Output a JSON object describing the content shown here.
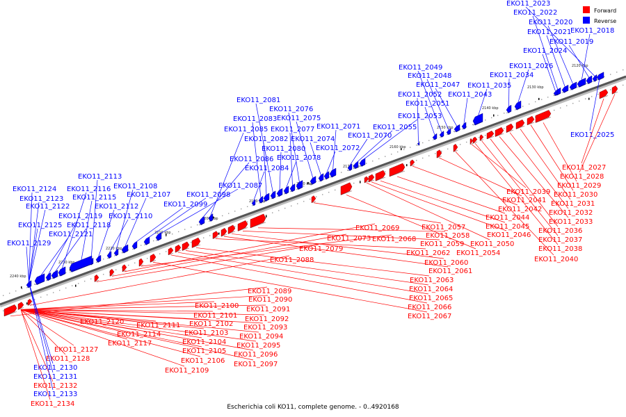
{
  "caption": "Escherichia coli KO11, complete genome. - 0..4920168",
  "legend": {
    "forward_label": "Forward",
    "reverse_label": "Reverse",
    "forward_color": "#ff0000",
    "reverse_color": "#0000ff"
  },
  "colors": {
    "forward": "#ff0000",
    "reverse": "#0000ff",
    "axis": "#555555"
  },
  "ticks": [
    "2120 kbp",
    "2130 kbp",
    "2140 kbp",
    "2150 kbp",
    "2160 kbp",
    "2170 kbp",
    "2180 kbp",
    "2190 kbp",
    "2200 kbp",
    "2210 kbp",
    "2220 kbp",
    "2230 kbp",
    "2240 kbp"
  ],
  "genes": [
    {
      "id": "EKO11_2018",
      "strand": "reverse"
    },
    {
      "id": "EKO11_2019",
      "strand": "reverse"
    },
    {
      "id": "EKO11_2020",
      "strand": "reverse"
    },
    {
      "id": "EKO11_2021",
      "strand": "reverse"
    },
    {
      "id": "EKO11_2022",
      "strand": "reverse"
    },
    {
      "id": "EKO11_2023",
      "strand": "reverse"
    },
    {
      "id": "EKO11_2024",
      "strand": "reverse"
    },
    {
      "id": "EKO11_2025",
      "strand": "reverse"
    },
    {
      "id": "EKO11_2026",
      "strand": "reverse"
    },
    {
      "id": "EKO11_2027",
      "strand": "forward"
    },
    {
      "id": "EKO11_2028",
      "strand": "forward"
    },
    {
      "id": "EKO11_2029",
      "strand": "forward"
    },
    {
      "id": "EKO11_2030",
      "strand": "forward"
    },
    {
      "id": "EKO11_2031",
      "strand": "forward"
    },
    {
      "id": "EKO11_2032",
      "strand": "forward"
    },
    {
      "id": "EKO11_2033",
      "strand": "forward"
    },
    {
      "id": "EKO11_2034",
      "strand": "reverse"
    },
    {
      "id": "EKO11_2035",
      "strand": "reverse"
    },
    {
      "id": "EKO11_2036",
      "strand": "forward"
    },
    {
      "id": "EKO11_2037",
      "strand": "forward"
    },
    {
      "id": "EKO11_2038",
      "strand": "forward"
    },
    {
      "id": "EKO11_2039",
      "strand": "forward"
    },
    {
      "id": "EKO11_2040",
      "strand": "forward"
    },
    {
      "id": "EKO11_2041",
      "strand": "forward"
    },
    {
      "id": "EKO11_2042",
      "strand": "forward"
    },
    {
      "id": "EKO11_2043",
      "strand": "reverse"
    },
    {
      "id": "EKO11_2044",
      "strand": "forward"
    },
    {
      "id": "EKO11_2045",
      "strand": "forward"
    },
    {
      "id": "EKO11_2046",
      "strand": "forward"
    },
    {
      "id": "EKO11_2047",
      "strand": "reverse"
    },
    {
      "id": "EKO11_2048",
      "strand": "reverse"
    },
    {
      "id": "EKO11_2049",
      "strand": "reverse"
    },
    {
      "id": "EKO11_2050",
      "strand": "forward"
    },
    {
      "id": "EKO11_2051",
      "strand": "reverse"
    },
    {
      "id": "EKO11_2052",
      "strand": "reverse"
    },
    {
      "id": "EKO11_2053",
      "strand": "reverse"
    },
    {
      "id": "EKO11_2054",
      "strand": "forward"
    },
    {
      "id": "EKO11_2055",
      "strand": "reverse"
    },
    {
      "id": "EKO11_2057",
      "strand": "forward"
    },
    {
      "id": "EKO11_2058",
      "strand": "forward"
    },
    {
      "id": "EKO11_2059",
      "strand": "forward"
    },
    {
      "id": "EKO11_2060",
      "strand": "forward"
    },
    {
      "id": "EKO11_2061",
      "strand": "forward"
    },
    {
      "id": "EKO11_2062",
      "strand": "forward"
    },
    {
      "id": "EKO11_2063",
      "strand": "forward"
    },
    {
      "id": "EKO11_2064",
      "strand": "forward"
    },
    {
      "id": "EKO11_2065",
      "strand": "forward"
    },
    {
      "id": "EKO11_2066",
      "strand": "forward"
    },
    {
      "id": "EKO11_2067",
      "strand": "forward"
    },
    {
      "id": "EKO11_2068",
      "strand": "forward"
    },
    {
      "id": "EKO11_2069",
      "strand": "forward"
    },
    {
      "id": "EKO11_2070",
      "strand": "reverse"
    },
    {
      "id": "EKO11_2071",
      "strand": "reverse"
    },
    {
      "id": "EKO11_2072",
      "strand": "reverse"
    },
    {
      "id": "EKO11_2073",
      "strand": "forward"
    },
    {
      "id": "EKO11_2074",
      "strand": "reverse"
    },
    {
      "id": "EKO11_2075",
      "strand": "reverse"
    },
    {
      "id": "EKO11_2076",
      "strand": "reverse"
    },
    {
      "id": "EKO11_2077",
      "strand": "reverse"
    },
    {
      "id": "EKO11_2078",
      "strand": "reverse"
    },
    {
      "id": "EKO11_2079",
      "strand": "forward"
    },
    {
      "id": "EKO11_2080",
      "strand": "reverse"
    },
    {
      "id": "EKO11_2081",
      "strand": "reverse"
    },
    {
      "id": "EKO11_2082",
      "strand": "reverse"
    },
    {
      "id": "EKO11_2083",
      "strand": "reverse"
    },
    {
      "id": "EKO11_2084",
      "strand": "reverse"
    },
    {
      "id": "EKO11_2085",
      "strand": "reverse"
    },
    {
      "id": "EKO11_2086",
      "strand": "reverse"
    },
    {
      "id": "EKO11_2087",
      "strand": "reverse"
    },
    {
      "id": "EKO11_2088",
      "strand": "forward"
    },
    {
      "id": "EKO11_2089",
      "strand": "forward"
    },
    {
      "id": "EKO11_2090",
      "strand": "forward"
    },
    {
      "id": "EKO11_2091",
      "strand": "forward"
    },
    {
      "id": "EKO11_2092",
      "strand": "forward"
    },
    {
      "id": "EKO11_2093",
      "strand": "forward"
    },
    {
      "id": "EKO11_2094",
      "strand": "forward"
    },
    {
      "id": "EKO11_2095",
      "strand": "forward"
    },
    {
      "id": "EKO11_2096",
      "strand": "forward"
    },
    {
      "id": "EKO11_2097",
      "strand": "forward"
    },
    {
      "id": "EKO11_2098",
      "strand": "reverse"
    },
    {
      "id": "EKO11_2099",
      "strand": "reverse"
    },
    {
      "id": "EKO11_2100",
      "strand": "forward"
    },
    {
      "id": "EKO11_2101",
      "strand": "forward"
    },
    {
      "id": "EKO11_2102",
      "strand": "forward"
    },
    {
      "id": "EKO11_2103",
      "strand": "forward"
    },
    {
      "id": "EKO11_2104",
      "strand": "forward"
    },
    {
      "id": "EKO11_2105",
      "strand": "forward"
    },
    {
      "id": "EKO11_2106",
      "strand": "forward"
    },
    {
      "id": "EKO11_2107",
      "strand": "reverse"
    },
    {
      "id": "EKO11_2108",
      "strand": "reverse"
    },
    {
      "id": "EKO11_2109",
      "strand": "forward"
    },
    {
      "id": "EKO11_2110",
      "strand": "reverse"
    },
    {
      "id": "EKO11_2111",
      "strand": "forward"
    },
    {
      "id": "EKO11_2112",
      "strand": "reverse"
    },
    {
      "id": "EKO11_2113",
      "strand": "reverse"
    },
    {
      "id": "EKO11_2114",
      "strand": "forward"
    },
    {
      "id": "EKO11_2115",
      "strand": "reverse"
    },
    {
      "id": "EKO11_2116",
      "strand": "reverse"
    },
    {
      "id": "EKO11_2117",
      "strand": "forward"
    },
    {
      "id": "EKO11_2118",
      "strand": "reverse"
    },
    {
      "id": "EKO11_2119",
      "strand": "reverse"
    },
    {
      "id": "EKO11_2120",
      "strand": "forward"
    },
    {
      "id": "EKO11_2121",
      "strand": "reverse"
    },
    {
      "id": "EKO11_2122",
      "strand": "reverse"
    },
    {
      "id": "EKO11_2123",
      "strand": "reverse"
    },
    {
      "id": "EKO11_2124",
      "strand": "reverse"
    },
    {
      "id": "EKO11_2125",
      "strand": "reverse"
    },
    {
      "id": "EKO11_2127",
      "strand": "forward"
    },
    {
      "id": "EKO11_2128",
      "strand": "forward"
    },
    {
      "id": "EKO11_2129",
      "strand": "reverse"
    },
    {
      "id": "EKO11_2130",
      "strand": "reverse"
    },
    {
      "id": "EKO11_2131",
      "strand": "reverse"
    },
    {
      "id": "EKO11_2132",
      "strand": "forward"
    },
    {
      "id": "EKO11_2133",
      "strand": "reverse"
    },
    {
      "id": "EKO11_2134",
      "strand": "forward"
    }
  ]
}
